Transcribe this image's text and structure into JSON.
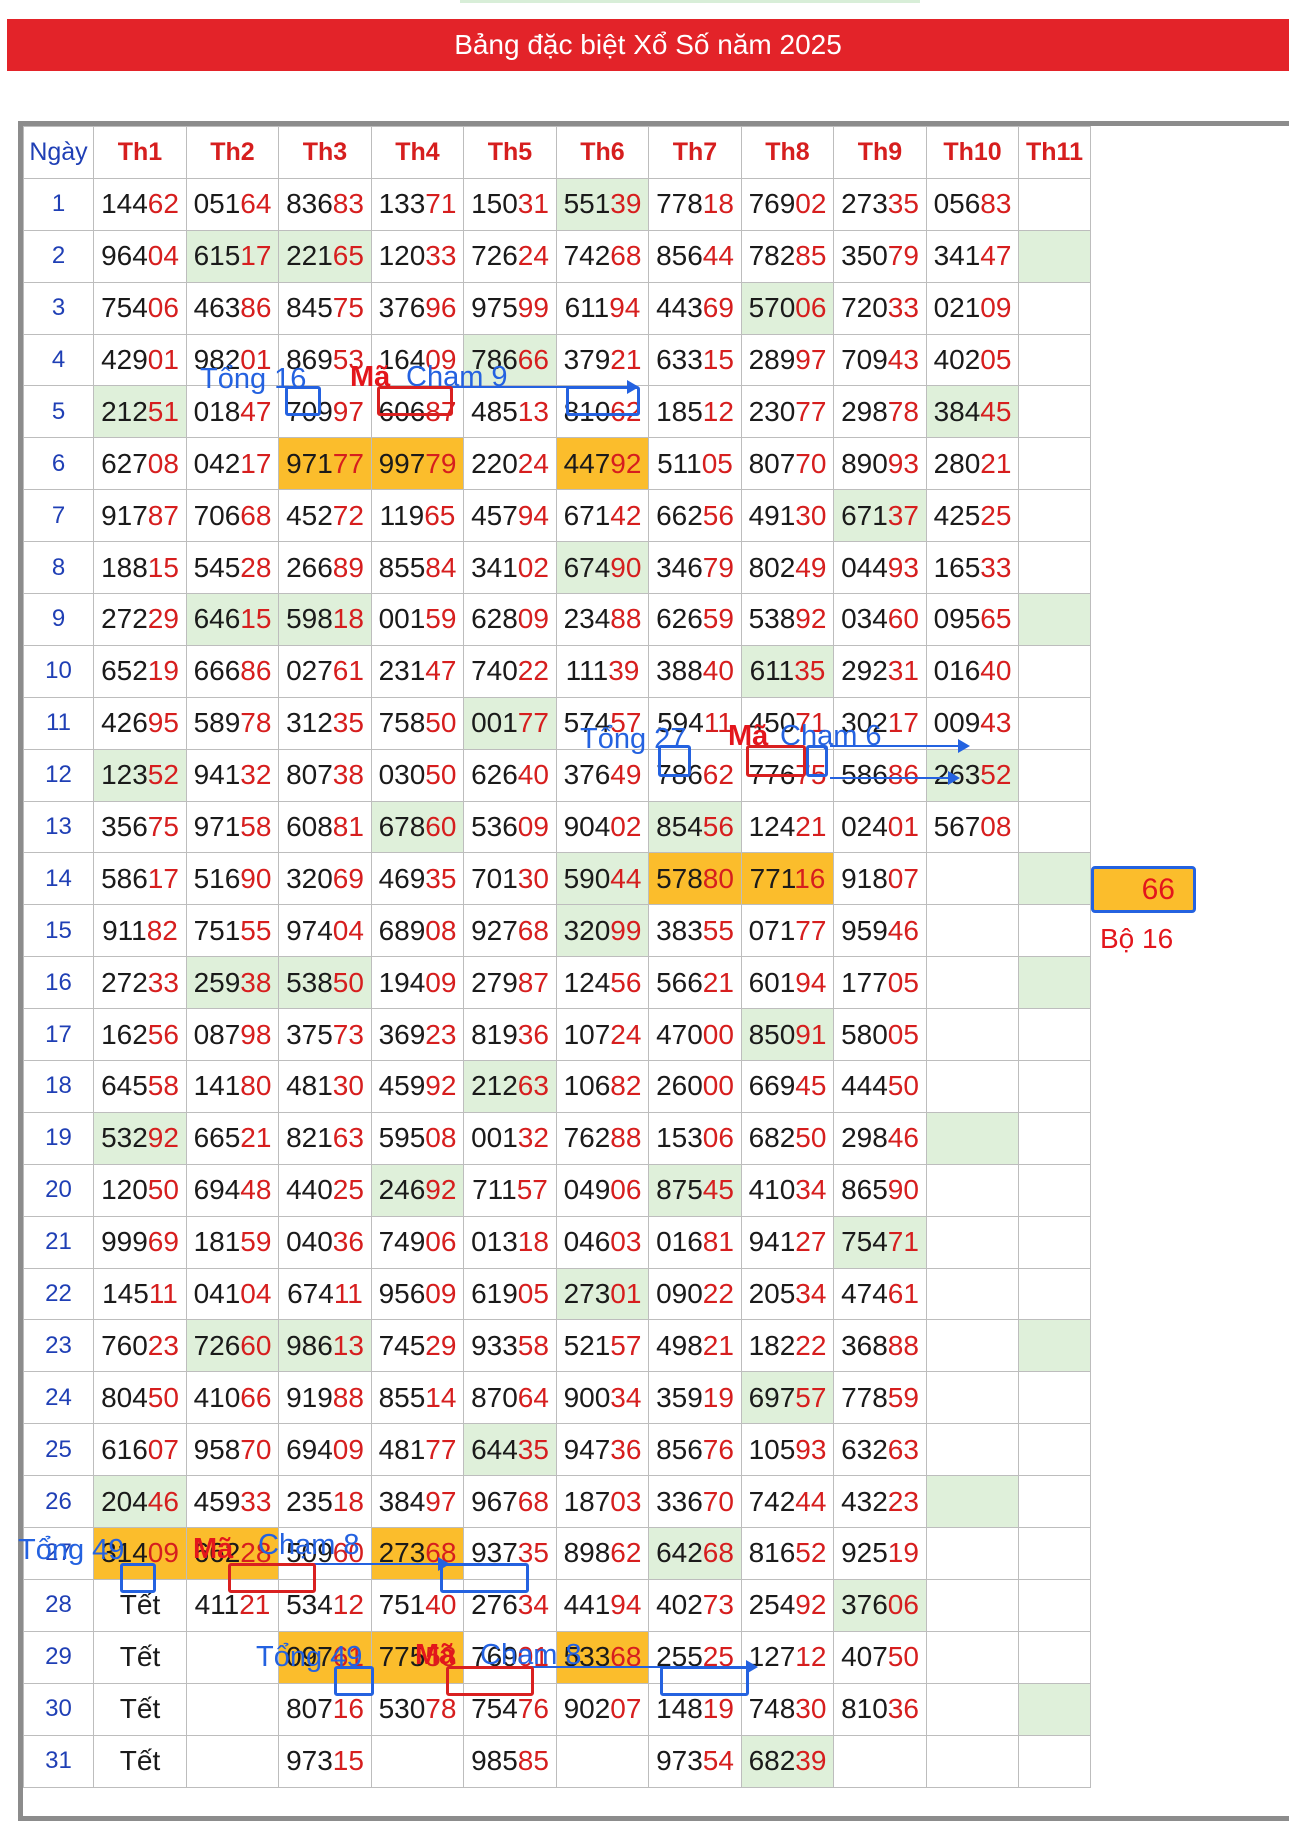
{
  "title": "Bảng đặc biệt Xổ Số năm 2025",
  "headers": [
    "Ngày",
    "Th1",
    "Th2",
    "Th3",
    "Th4",
    "Th5",
    "Th6",
    "Th7",
    "Th8",
    "Th9",
    "Th10",
    "Th11"
  ],
  "rows": [
    {
      "day": "1",
      "cells": [
        "14462",
        "05164",
        "83683",
        "13371",
        "15031",
        "55139",
        "77818",
        "76902",
        "27335",
        "05683",
        ""
      ]
    },
    {
      "day": "2",
      "cells": [
        "96404",
        "61517",
        "22165",
        "12033",
        "72624",
        "74268",
        "85644",
        "78285",
        "35079",
        "34147",
        ""
      ]
    },
    {
      "day": "3",
      "cells": [
        "75406",
        "46386",
        "84575",
        "37696",
        "97599",
        "61194",
        "44369",
        "57006",
        "72033",
        "02109",
        ""
      ]
    },
    {
      "day": "4",
      "cells": [
        "42901",
        "98201",
        "86953",
        "16409",
        "78666",
        "37921",
        "63315",
        "28997",
        "70943",
        "40205",
        ""
      ]
    },
    {
      "day": "5",
      "cells": [
        "21251",
        "01847",
        "70997",
        "60687",
        "48513",
        "81062",
        "18512",
        "23077",
        "29878",
        "38445",
        ""
      ]
    },
    {
      "day": "6",
      "cells": [
        "62708",
        "04217",
        "97177",
        "99779",
        "22024",
        "44792",
        "51105",
        "80770",
        "89093",
        "28021",
        ""
      ]
    },
    {
      "day": "7",
      "cells": [
        "91787",
        "70668",
        "45272",
        "11965",
        "45794",
        "67142",
        "66256",
        "49130",
        "67137",
        "42525",
        ""
      ]
    },
    {
      "day": "8",
      "cells": [
        "18815",
        "54528",
        "26689",
        "85584",
        "34102",
        "67490",
        "34679",
        "80249",
        "04493",
        "16533",
        ""
      ]
    },
    {
      "day": "9",
      "cells": [
        "27229",
        "64615",
        "59818",
        "00159",
        "62809",
        "23488",
        "62659",
        "53892",
        "03460",
        "09565",
        ""
      ]
    },
    {
      "day": "10",
      "cells": [
        "65219",
        "66686",
        "02761",
        "23147",
        "74022",
        "11139",
        "38840",
        "61135",
        "29231",
        "01640",
        ""
      ]
    },
    {
      "day": "11",
      "cells": [
        "42695",
        "58978",
        "31235",
        "75850",
        "00177",
        "57457",
        "59411",
        "45071",
        "30217",
        "00943",
        ""
      ]
    },
    {
      "day": "12",
      "cells": [
        "12352",
        "94132",
        "80738",
        "03050",
        "62640",
        "37649",
        "78662",
        "77675",
        "58686",
        "26352",
        ""
      ]
    },
    {
      "day": "13",
      "cells": [
        "35675",
        "97158",
        "60881",
        "67860",
        "53609",
        "90402",
        "85456",
        "12421",
        "02401",
        "56708",
        ""
      ]
    },
    {
      "day": "14",
      "cells": [
        "58617",
        "51690",
        "32069",
        "46935",
        "70130",
        "59044",
        "57880",
        "77116",
        "91807",
        "",
        ""
      ]
    },
    {
      "day": "15",
      "cells": [
        "91182",
        "75155",
        "97404",
        "68908",
        "92768",
        "32099",
        "38355",
        "07177",
        "95946",
        "",
        ""
      ]
    },
    {
      "day": "16",
      "cells": [
        "27233",
        "25938",
        "53850",
        "19409",
        "27987",
        "12456",
        "56621",
        "60194",
        "17705",
        "",
        ""
      ]
    },
    {
      "day": "17",
      "cells": [
        "16256",
        "08798",
        "37573",
        "36923",
        "81936",
        "10724",
        "47000",
        "85091",
        "58005",
        "",
        ""
      ]
    },
    {
      "day": "18",
      "cells": [
        "64558",
        "14180",
        "48130",
        "45992",
        "21263",
        "10682",
        "26000",
        "66945",
        "44450",
        "",
        ""
      ]
    },
    {
      "day": "19",
      "cells": [
        "53292",
        "66521",
        "82163",
        "59508",
        "00132",
        "76288",
        "15306",
        "68250",
        "29846",
        "",
        ""
      ]
    },
    {
      "day": "20",
      "cells": [
        "12050",
        "69448",
        "44025",
        "24692",
        "71157",
        "04906",
        "87545",
        "41034",
        "86590",
        "",
        ""
      ]
    },
    {
      "day": "21",
      "cells": [
        "99969",
        "18159",
        "04036",
        "74906",
        "01318",
        "04603",
        "01681",
        "94127",
        "75471",
        "",
        ""
      ]
    },
    {
      "day": "22",
      "cells": [
        "14511",
        "04104",
        "67411",
        "95609",
        "61905",
        "27301",
        "09022",
        "20534",
        "47461",
        "",
        ""
      ]
    },
    {
      "day": "23",
      "cells": [
        "76023",
        "72660",
        "98613",
        "74529",
        "93358",
        "52157",
        "49821",
        "18222",
        "36888",
        "",
        ""
      ]
    },
    {
      "day": "24",
      "cells": [
        "80450",
        "41066",
        "91988",
        "85514",
        "87064",
        "90034",
        "35919",
        "69757",
        "77859",
        "",
        ""
      ]
    },
    {
      "day": "25",
      "cells": [
        "61607",
        "95870",
        "69409",
        "48177",
        "64435",
        "94736",
        "85676",
        "10593",
        "63263",
        "",
        ""
      ]
    },
    {
      "day": "26",
      "cells": [
        "20446",
        "45933",
        "23518",
        "38497",
        "96768",
        "18703",
        "33670",
        "74244",
        "43223",
        "",
        ""
      ]
    },
    {
      "day": "27",
      "cells": [
        "31409",
        "66228",
        "50960",
        "27368",
        "93735",
        "89862",
        "64268",
        "81652",
        "92519",
        "",
        ""
      ]
    },
    {
      "day": "28",
      "cells": [
        "Tết",
        "41121",
        "53412",
        "75140",
        "27634",
        "44194",
        "40273",
        "25492",
        "37606",
        "",
        ""
      ]
    },
    {
      "day": "29",
      "cells": [
        "Tết",
        "",
        "09761",
        "77558",
        "76901",
        "53368",
        "25525",
        "12712",
        "40750",
        "",
        ""
      ]
    },
    {
      "day": "30",
      "cells": [
        "Tết",
        "",
        "80716",
        "53078",
        "75476",
        "90207",
        "14819",
        "74830",
        "81036",
        "",
        ""
      ]
    },
    {
      "day": "31",
      "cells": [
        "Tết",
        "",
        "97315",
        "",
        "98585",
        "",
        "97354",
        "68239",
        "",
        "",
        ""
      ]
    }
  ],
  "highlight_green": [
    [
      1,
      5
    ],
    [
      2,
      1
    ],
    [
      2,
      2
    ],
    [
      2,
      10
    ],
    [
      3,
      7
    ],
    [
      4,
      4
    ],
    [
      5,
      0
    ],
    [
      5,
      9
    ],
    [
      7,
      8
    ],
    [
      8,
      5
    ],
    [
      9,
      1
    ],
    [
      9,
      2
    ],
    [
      9,
      10
    ],
    [
      10,
      7
    ],
    [
      11,
      4
    ],
    [
      12,
      0
    ],
    [
      12,
      9
    ],
    [
      13,
      3
    ],
    [
      13,
      6
    ],
    [
      14,
      5
    ],
    [
      14,
      10
    ],
    [
      15,
      5
    ],
    [
      16,
      1
    ],
    [
      16,
      2
    ],
    [
      16,
      10
    ],
    [
      17,
      7
    ],
    [
      18,
      4
    ],
    [
      19,
      0
    ],
    [
      19,
      9
    ],
    [
      20,
      3
    ],
    [
      20,
      6
    ],
    [
      21,
      8
    ],
    [
      22,
      5
    ],
    [
      23,
      1
    ],
    [
      23,
      2
    ],
    [
      23,
      10
    ],
    [
      24,
      7
    ],
    [
      25,
      4
    ],
    [
      26,
      0
    ],
    [
      26,
      9
    ],
    [
      27,
      3
    ],
    [
      27,
      6
    ],
    [
      28,
      8
    ],
    [
      30,
      10
    ],
    [
      31,
      7
    ]
  ],
  "highlight_orange": [
    [
      6,
      2
    ],
    [
      6,
      3
    ],
    [
      6,
      5
    ],
    [
      14,
      6
    ],
    [
      14,
      7
    ],
    [
      27,
      0
    ],
    [
      27,
      1
    ],
    [
      27,
      3
    ],
    [
      29,
      2
    ],
    [
      29,
      3
    ],
    [
      29,
      5
    ]
  ],
  "annotations": {
    "tong16": "Tổng 16",
    "ma": "Mã",
    "cham9": "Chạm 9",
    "tong27": "Tổng 27",
    "cham6": "Chạm 6",
    "result": "66",
    "bo16": "Bộ 16",
    "tong49": "Tổng 49",
    "cham8": "Chạm 8"
  },
  "colors": {
    "banner": "#e32329",
    "green": "#dff0da",
    "orange": "#fbbd2c",
    "blue": "#2462e0",
    "red": "#e3161c"
  }
}
